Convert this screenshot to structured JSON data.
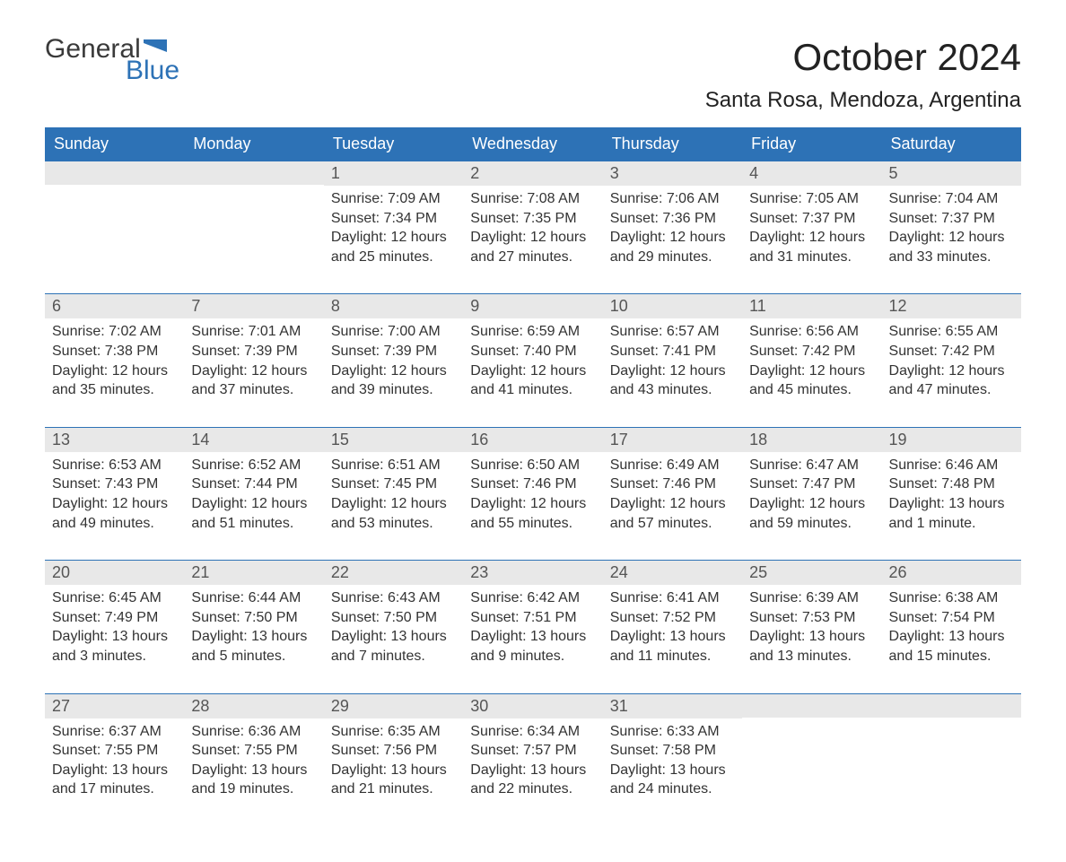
{
  "brand": {
    "word1": "General",
    "word2": "Blue"
  },
  "title": "October 2024",
  "location": "Santa Rosa, Mendoza, Argentina",
  "colors": {
    "header_bg": "#2d72b6",
    "header_text": "#ffffff",
    "daynum_bg": "#e8e8e8",
    "row_divider": "#2d72b6",
    "body_text": "#333333",
    "logo_blue": "#2d72b6"
  },
  "weekdays": [
    "Sunday",
    "Monday",
    "Tuesday",
    "Wednesday",
    "Thursday",
    "Friday",
    "Saturday"
  ],
  "leading_blanks": 2,
  "days": [
    {
      "n": 1,
      "sunrise": "7:09 AM",
      "sunset": "7:34 PM",
      "daylight": "12 hours and 25 minutes."
    },
    {
      "n": 2,
      "sunrise": "7:08 AM",
      "sunset": "7:35 PM",
      "daylight": "12 hours and 27 minutes."
    },
    {
      "n": 3,
      "sunrise": "7:06 AM",
      "sunset": "7:36 PM",
      "daylight": "12 hours and 29 minutes."
    },
    {
      "n": 4,
      "sunrise": "7:05 AM",
      "sunset": "7:37 PM",
      "daylight": "12 hours and 31 minutes."
    },
    {
      "n": 5,
      "sunrise": "7:04 AM",
      "sunset": "7:37 PM",
      "daylight": "12 hours and 33 minutes."
    },
    {
      "n": 6,
      "sunrise": "7:02 AM",
      "sunset": "7:38 PM",
      "daylight": "12 hours and 35 minutes."
    },
    {
      "n": 7,
      "sunrise": "7:01 AM",
      "sunset": "7:39 PM",
      "daylight": "12 hours and 37 minutes."
    },
    {
      "n": 8,
      "sunrise": "7:00 AM",
      "sunset": "7:39 PM",
      "daylight": "12 hours and 39 minutes."
    },
    {
      "n": 9,
      "sunrise": "6:59 AM",
      "sunset": "7:40 PM",
      "daylight": "12 hours and 41 minutes."
    },
    {
      "n": 10,
      "sunrise": "6:57 AM",
      "sunset": "7:41 PM",
      "daylight": "12 hours and 43 minutes."
    },
    {
      "n": 11,
      "sunrise": "6:56 AM",
      "sunset": "7:42 PM",
      "daylight": "12 hours and 45 minutes."
    },
    {
      "n": 12,
      "sunrise": "6:55 AM",
      "sunset": "7:42 PM",
      "daylight": "12 hours and 47 minutes."
    },
    {
      "n": 13,
      "sunrise": "6:53 AM",
      "sunset": "7:43 PM",
      "daylight": "12 hours and 49 minutes."
    },
    {
      "n": 14,
      "sunrise": "6:52 AM",
      "sunset": "7:44 PM",
      "daylight": "12 hours and 51 minutes."
    },
    {
      "n": 15,
      "sunrise": "6:51 AM",
      "sunset": "7:45 PM",
      "daylight": "12 hours and 53 minutes."
    },
    {
      "n": 16,
      "sunrise": "6:50 AM",
      "sunset": "7:46 PM",
      "daylight": "12 hours and 55 minutes."
    },
    {
      "n": 17,
      "sunrise": "6:49 AM",
      "sunset": "7:46 PM",
      "daylight": "12 hours and 57 minutes."
    },
    {
      "n": 18,
      "sunrise": "6:47 AM",
      "sunset": "7:47 PM",
      "daylight": "12 hours and 59 minutes."
    },
    {
      "n": 19,
      "sunrise": "6:46 AM",
      "sunset": "7:48 PM",
      "daylight": "13 hours and 1 minute."
    },
    {
      "n": 20,
      "sunrise": "6:45 AM",
      "sunset": "7:49 PM",
      "daylight": "13 hours and 3 minutes."
    },
    {
      "n": 21,
      "sunrise": "6:44 AM",
      "sunset": "7:50 PM",
      "daylight": "13 hours and 5 minutes."
    },
    {
      "n": 22,
      "sunrise": "6:43 AM",
      "sunset": "7:50 PM",
      "daylight": "13 hours and 7 minutes."
    },
    {
      "n": 23,
      "sunrise": "6:42 AM",
      "sunset": "7:51 PM",
      "daylight": "13 hours and 9 minutes."
    },
    {
      "n": 24,
      "sunrise": "6:41 AM",
      "sunset": "7:52 PM",
      "daylight": "13 hours and 11 minutes."
    },
    {
      "n": 25,
      "sunrise": "6:39 AM",
      "sunset": "7:53 PM",
      "daylight": "13 hours and 13 minutes."
    },
    {
      "n": 26,
      "sunrise": "6:38 AM",
      "sunset": "7:54 PM",
      "daylight": "13 hours and 15 minutes."
    },
    {
      "n": 27,
      "sunrise": "6:37 AM",
      "sunset": "7:55 PM",
      "daylight": "13 hours and 17 minutes."
    },
    {
      "n": 28,
      "sunrise": "6:36 AM",
      "sunset": "7:55 PM",
      "daylight": "13 hours and 19 minutes."
    },
    {
      "n": 29,
      "sunrise": "6:35 AM",
      "sunset": "7:56 PM",
      "daylight": "13 hours and 21 minutes."
    },
    {
      "n": 30,
      "sunrise": "6:34 AM",
      "sunset": "7:57 PM",
      "daylight": "13 hours and 22 minutes."
    },
    {
      "n": 31,
      "sunrise": "6:33 AM",
      "sunset": "7:58 PM",
      "daylight": "13 hours and 24 minutes."
    }
  ],
  "labels": {
    "sunrise": "Sunrise:",
    "sunset": "Sunset:",
    "daylight": "Daylight:"
  }
}
